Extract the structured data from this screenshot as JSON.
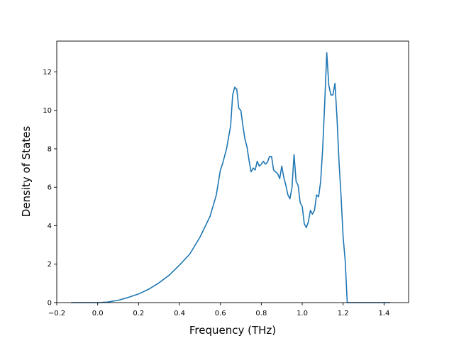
{
  "chart_data": {
    "type": "line",
    "title": "",
    "xlabel": "Frequency (THz)",
    "ylabel": "Density of States",
    "xlim": [
      -0.2,
      1.52
    ],
    "ylim": [
      0,
      13.6
    ],
    "xticks": [
      {
        "value": -0.2,
        "label": "−0.2"
      },
      {
        "value": 0.0,
        "label": "0.0"
      },
      {
        "value": 0.2,
        "label": "0.2"
      },
      {
        "value": 0.4,
        "label": "0.4"
      },
      {
        "value": 0.6,
        "label": "0.6"
      },
      {
        "value": 0.8,
        "label": "0.8"
      },
      {
        "value": 1.0,
        "label": "1.0"
      },
      {
        "value": 1.2,
        "label": "1.2"
      },
      {
        "value": 1.4,
        "label": "1.4"
      }
    ],
    "yticks": [
      {
        "value": 0,
        "label": "0"
      },
      {
        "value": 2,
        "label": "2"
      },
      {
        "value": 4,
        "label": "4"
      },
      {
        "value": 6,
        "label": "6"
      },
      {
        "value": 8,
        "label": "8"
      },
      {
        "value": 10,
        "label": "10"
      },
      {
        "value": 12,
        "label": "12"
      }
    ],
    "grid": false,
    "legend": "none",
    "series": [
      {
        "color": "#1f77b4",
        "x": [
          -0.13,
          0.0,
          0.05,
          0.1,
          0.15,
          0.2,
          0.25,
          0.3,
          0.35,
          0.4,
          0.45,
          0.5,
          0.55,
          0.58,
          0.6,
          0.61,
          0.63,
          0.65,
          0.66,
          0.67,
          0.68,
          0.69,
          0.7,
          0.71,
          0.72,
          0.73,
          0.74,
          0.75,
          0.76,
          0.77,
          0.78,
          0.79,
          0.8,
          0.81,
          0.82,
          0.83,
          0.84,
          0.85,
          0.86,
          0.87,
          0.88,
          0.89,
          0.9,
          0.91,
          0.92,
          0.93,
          0.94,
          0.95,
          0.96,
          0.97,
          0.98,
          0.99,
          1.0,
          1.01,
          1.02,
          1.03,
          1.04,
          1.05,
          1.06,
          1.07,
          1.08,
          1.09,
          1.1,
          1.11,
          1.12,
          1.13,
          1.14,
          1.15,
          1.16,
          1.17,
          1.18,
          1.19,
          1.2,
          1.21,
          1.22,
          1.23,
          1.24,
          1.25,
          1.27,
          1.29,
          1.3,
          1.32,
          1.35,
          1.4,
          1.43
        ],
        "y": [
          0.0,
          0.0,
          0.03,
          0.12,
          0.27,
          0.45,
          0.7,
          1.03,
          1.43,
          1.95,
          2.52,
          3.4,
          4.5,
          5.6,
          6.9,
          7.2,
          8.0,
          9.2,
          10.8,
          11.2,
          11.1,
          10.1,
          10.0,
          9.2,
          8.5,
          8.1,
          7.4,
          6.8,
          7.0,
          6.9,
          7.35,
          7.1,
          7.2,
          7.35,
          7.2,
          7.3,
          7.6,
          7.6,
          6.9,
          6.8,
          6.7,
          6.45,
          7.1,
          6.5,
          6.1,
          5.6,
          5.4,
          6.0,
          7.7,
          6.3,
          6.1,
          5.2,
          5.0,
          4.1,
          3.9,
          4.2,
          4.8,
          4.6,
          4.8,
          5.6,
          5.5,
          6.3,
          8.0,
          10.4,
          13.0,
          11.3,
          10.8,
          10.8,
          11.4,
          9.6,
          7.3,
          5.5,
          3.4,
          2.2,
          0.0,
          0.0,
          0.0,
          0.0,
          0.0,
          0.0,
          0.0,
          0.0,
          0.0,
          0.0,
          0.0
        ]
      }
    ]
  }
}
